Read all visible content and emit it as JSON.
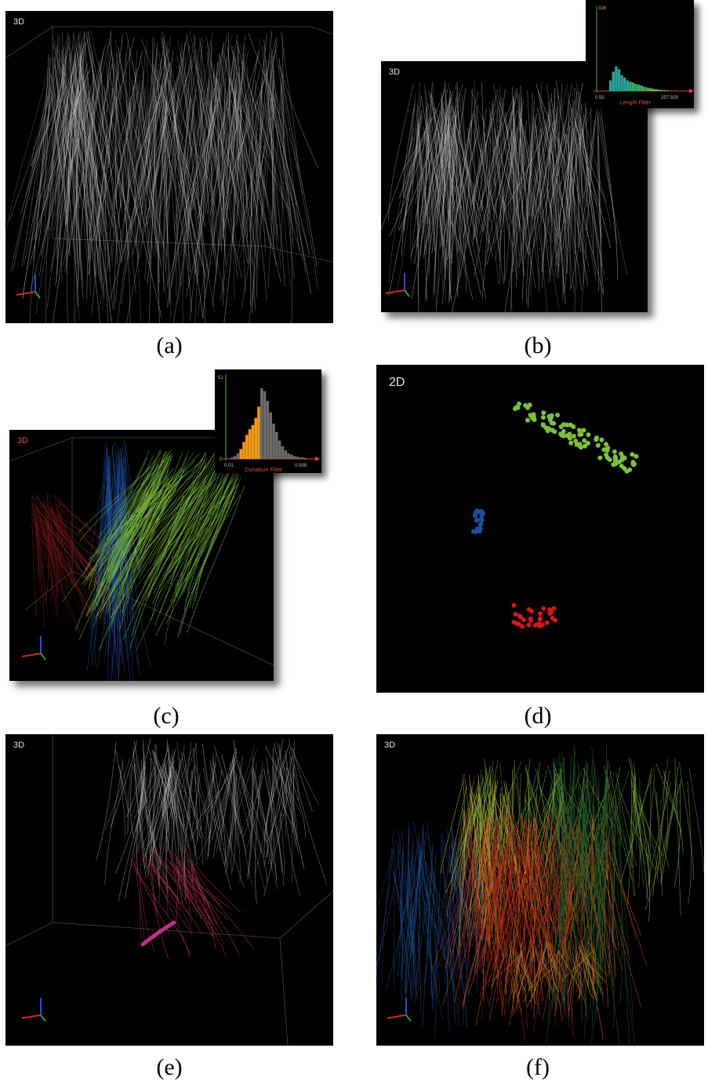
{
  "panels": {
    "a": {
      "mode": "3D",
      "caption": "(a)"
    },
    "b": {
      "mode": "3D",
      "caption": "(b)",
      "inset": {
        "label": "Length Filter",
        "y_tick": "316",
        "x_min": "0.55",
        "x_max": "257.929"
      }
    },
    "c": {
      "mode": "3D",
      "caption": "(c)",
      "inset": {
        "label": "Curvature Filter",
        "y_tick": "51",
        "y_zero": "0",
        "x_min": "0.01",
        "x_max": "0.099"
      }
    },
    "d": {
      "mode": "2D",
      "caption": "(d)"
    },
    "e": {
      "mode": "3D",
      "caption": "(e)"
    },
    "f": {
      "mode": "3D",
      "caption": "(f)"
    }
  },
  "colors": {
    "background": "#000000",
    "fiber_gray": "#c8c8c8",
    "cluster_green": "#7fbf3f",
    "cluster_blue": "#1f4e9c",
    "cluster_red": "#cc1a1a",
    "highlight_magenta": "#c0308a",
    "histogram_green": "#3aaa6a",
    "histogram_orange": "#f39a1a",
    "histogram_gray": "#6a6a6a"
  }
}
